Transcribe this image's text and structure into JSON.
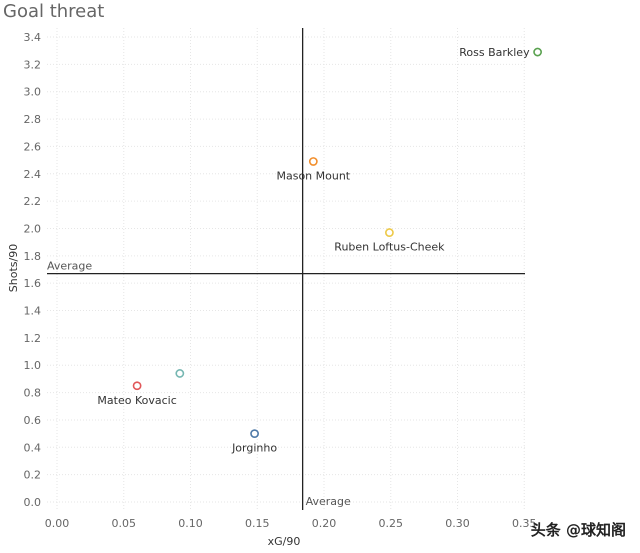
{
  "chart_data": {
    "type": "scatter",
    "title": "Goal threat",
    "xlabel": "xG/90",
    "ylabel": "Shots/90",
    "xlim": [
      -0.01,
      0.38
    ],
    "ylim": [
      -0.05,
      3.5
    ],
    "x_ticks": [
      "0.00",
      "0.05",
      "0.10",
      "0.15",
      "0.20",
      "0.25",
      "0.30",
      "0.35"
    ],
    "x_tick_values": [
      0,
      0.05,
      0.1,
      0.15,
      0.2,
      0.25,
      0.3,
      0.35
    ],
    "y_ticks": [
      "0.0",
      "0.2",
      "0.4",
      "0.6",
      "0.8",
      "1.0",
      "1.2",
      "1.4",
      "1.6",
      "1.8",
      "2.0",
      "2.2",
      "2.4",
      "2.6",
      "2.8",
      "3.0",
      "3.2",
      "3.4"
    ],
    "y_tick_values": [
      0,
      0.2,
      0.4,
      0.6,
      0.8,
      1.0,
      1.2,
      1.4,
      1.6,
      1.8,
      2.0,
      2.2,
      2.4,
      2.6,
      2.8,
      3.0,
      3.2,
      3.4
    ],
    "grid": true,
    "reference_lines": {
      "x_average": 0.184,
      "y_average": 1.67,
      "x_label": "Average",
      "y_label": "Average"
    },
    "points": [
      {
        "name": "Ross Barkley",
        "x": 0.36,
        "y": 3.29,
        "color": "#59a14f",
        "label_pos": "left"
      },
      {
        "name": "Mason Mount",
        "x": 0.192,
        "y": 2.49,
        "color": "#f28e2b",
        "label_pos": "below"
      },
      {
        "name": "Ruben Loftus-Cheek",
        "x": 0.249,
        "y": 1.97,
        "color": "#edc948",
        "label_pos": "below"
      },
      {
        "name": "",
        "x": 0.092,
        "y": 0.94,
        "color": "#76b7b2",
        "label_pos": "none"
      },
      {
        "name": "Mateo Kovacic",
        "x": 0.06,
        "y": 0.85,
        "color": "#e15759",
        "label_pos": "below"
      },
      {
        "name": "Jorginho",
        "x": 0.148,
        "y": 0.5,
        "color": "#4e79a7",
        "label_pos": "below"
      }
    ]
  },
  "watermark": "头条 @球知阁"
}
